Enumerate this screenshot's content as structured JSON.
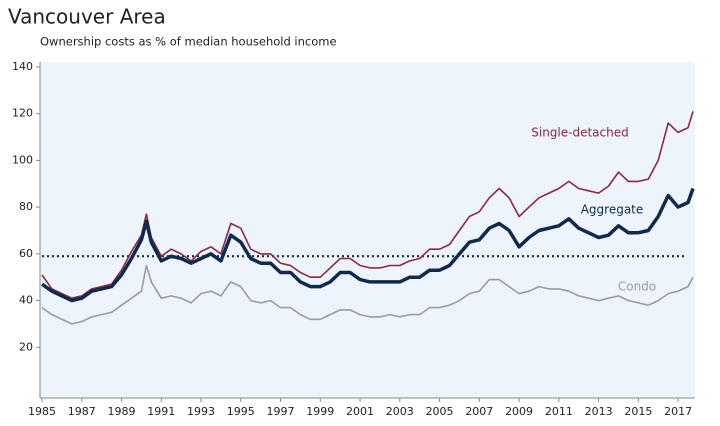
{
  "chart_data": {
    "type": "line",
    "title": "Vancouver Area",
    "subtitle": "Ownership costs as % of median household income",
    "x": [
      1985,
      1985.5,
      1986,
      1986.5,
      1987,
      1987.5,
      1988,
      1988.5,
      1989,
      1989.5,
      1990,
      1990.25,
      1990.5,
      1991,
      1991.5,
      1992,
      1992.5,
      1993,
      1993.5,
      1994,
      1994.5,
      1995,
      1995.5,
      1996,
      1996.5,
      1997,
      1997.5,
      1998,
      1998.5,
      1999,
      1999.5,
      2000,
      2000.5,
      2001,
      2001.5,
      2002,
      2002.5,
      2003,
      2003.5,
      2004,
      2004.5,
      2005,
      2005.5,
      2006,
      2006.5,
      2007,
      2007.5,
      2008,
      2008.5,
      2009,
      2009.5,
      2010,
      2010.5,
      2011,
      2011.5,
      2012,
      2012.5,
      2013,
      2013.5,
      2014,
      2014.5,
      2015,
      2015.5,
      2016,
      2016.5,
      2017,
      2017.5,
      2017.75
    ],
    "series": [
      {
        "name": "Single-detached",
        "color": "#8b2942",
        "width": 1.6,
        "values": [
          51,
          45,
          43,
          41,
          42,
          45,
          46,
          47,
          53,
          61,
          68,
          77,
          67,
          59,
          62,
          60,
          57,
          61,
          63,
          60,
          73,
          71,
          62,
          60,
          60,
          56,
          55,
          52,
          50,
          50,
          54,
          58,
          58,
          55,
          54,
          54,
          55,
          55,
          57,
          58,
          62,
          62,
          64,
          70,
          76,
          78,
          84,
          88,
          84,
          76,
          80,
          84,
          86,
          88,
          91,
          88,
          87,
          86,
          89,
          95,
          91,
          91,
          92,
          100,
          116,
          112,
          114,
          121
        ]
      },
      {
        "name": "Aggregate",
        "color": "#0f2a4a",
        "width": 3.5,
        "values": [
          47,
          44,
          42,
          40,
          41,
          44,
          45,
          46,
          51,
          58,
          66,
          74,
          65,
          57,
          59,
          58,
          56,
          58,
          60,
          57,
          68,
          65,
          58,
          56,
          56,
          52,
          52,
          48,
          46,
          46,
          48,
          52,
          52,
          49,
          48,
          48,
          48,
          48,
          50,
          50,
          53,
          53,
          55,
          60,
          65,
          66,
          71,
          73,
          70,
          63,
          67,
          70,
          71,
          72,
          75,
          71,
          69,
          67,
          68,
          72,
          69,
          69,
          70,
          76,
          85,
          80,
          82,
          88
        ]
      },
      {
        "name": "Condo",
        "color": "#9a9ca0",
        "width": 1.6,
        "values": [
          37,
          34,
          32,
          30,
          31,
          33,
          34,
          35,
          38,
          41,
          44,
          55,
          48,
          41,
          42,
          41,
          39,
          43,
          44,
          42,
          48,
          46,
          40,
          39,
          40,
          37,
          37,
          34,
          32,
          32,
          34,
          36,
          36,
          34,
          33,
          33,
          34,
          33,
          34,
          34,
          37,
          37,
          38,
          40,
          43,
          44,
          49,
          49,
          46,
          43,
          44,
          46,
          45,
          45,
          44,
          42,
          41,
          40,
          41,
          42,
          40,
          39,
          38,
          40,
          43,
          44,
          46,
          50
        ]
      }
    ],
    "reference_line": 59,
    "xlim": [
      1985,
      2017.85
    ],
    "xticks": [
      1985,
      1987,
      1989,
      1991,
      1993,
      1995,
      1997,
      1999,
      2001,
      2003,
      2005,
      2007,
      2009,
      2011,
      2013,
      2015,
      2017
    ],
    "ylim": [
      0,
      140
    ],
    "yticks": [
      20,
      40,
      60,
      80,
      100,
      120,
      140
    ]
  }
}
